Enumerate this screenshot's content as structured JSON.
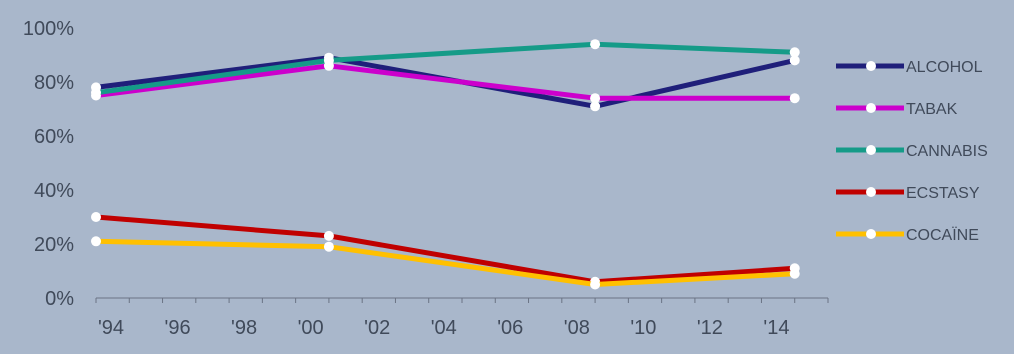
{
  "chart_data": {
    "type": "line",
    "x": [
      1994,
      2001,
      2009,
      2015
    ],
    "x_ticks": [
      "'94",
      "'96",
      "'98",
      "'00",
      "'02",
      "'04",
      "'06",
      "'08",
      "'10",
      "'12",
      "'14"
    ],
    "x_tick_values": [
      1994,
      1996,
      1998,
      2000,
      2002,
      2004,
      2006,
      2008,
      2010,
      2012,
      2014
    ],
    "xlim": [
      1994,
      2016
    ],
    "y_ticks": [
      "0%",
      "20%",
      "40%",
      "60%",
      "80%",
      "100%"
    ],
    "y_tick_values": [
      0,
      20,
      40,
      60,
      80,
      100
    ],
    "ylim": [
      0,
      100
    ],
    "grid": false,
    "legend_position": "right",
    "background_color": "#a9b7cb",
    "series": [
      {
        "name": "ALCOHOL",
        "color": "#1f1f7a",
        "values": [
          78,
          89,
          71,
          88
        ]
      },
      {
        "name": "TABAK",
        "color": "#cc00cc",
        "values": [
          75,
          86,
          74,
          74
        ]
      },
      {
        "name": "CANNABIS",
        "color": "#159b88",
        "values": [
          76,
          88,
          94,
          91
        ]
      },
      {
        "name": "ECSTASY",
        "color": "#c00000",
        "values": [
          30,
          23,
          6,
          11
        ]
      },
      {
        "name": "COCAÏNE",
        "color": "#ffc000",
        "values": [
          21,
          19,
          5,
          9
        ]
      }
    ]
  }
}
